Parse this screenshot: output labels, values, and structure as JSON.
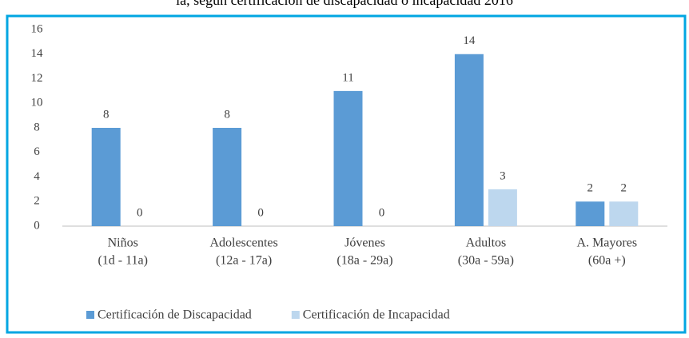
{
  "chart_data": {
    "type": "bar",
    "title": "ia, según certificación de discapacidad o incapacidad 2016",
    "categories": [
      [
        "Niños",
        "(1d - 11a)"
      ],
      [
        "Adolescentes",
        "(12a - 17a)"
      ],
      [
        "Jóvenes",
        "(18a - 29a)"
      ],
      [
        "Adultos",
        "(30a - 59a)"
      ],
      [
        "A. Mayores",
        "(60a +)"
      ]
    ],
    "series": [
      {
        "name": "Certificación de Discapacidad",
        "color": "#5b9bd5",
        "values": [
          8,
          8,
          11,
          14,
          2
        ]
      },
      {
        "name": "Certificación de Incapacidad",
        "color": "#bdd7ee",
        "values": [
          0,
          0,
          0,
          3,
          2
        ]
      }
    ],
    "ylim": [
      0,
      16
    ],
    "yticks": [
      0,
      2,
      4,
      6,
      8,
      10,
      12,
      14,
      16
    ],
    "grid": false,
    "legend": "bottom"
  }
}
